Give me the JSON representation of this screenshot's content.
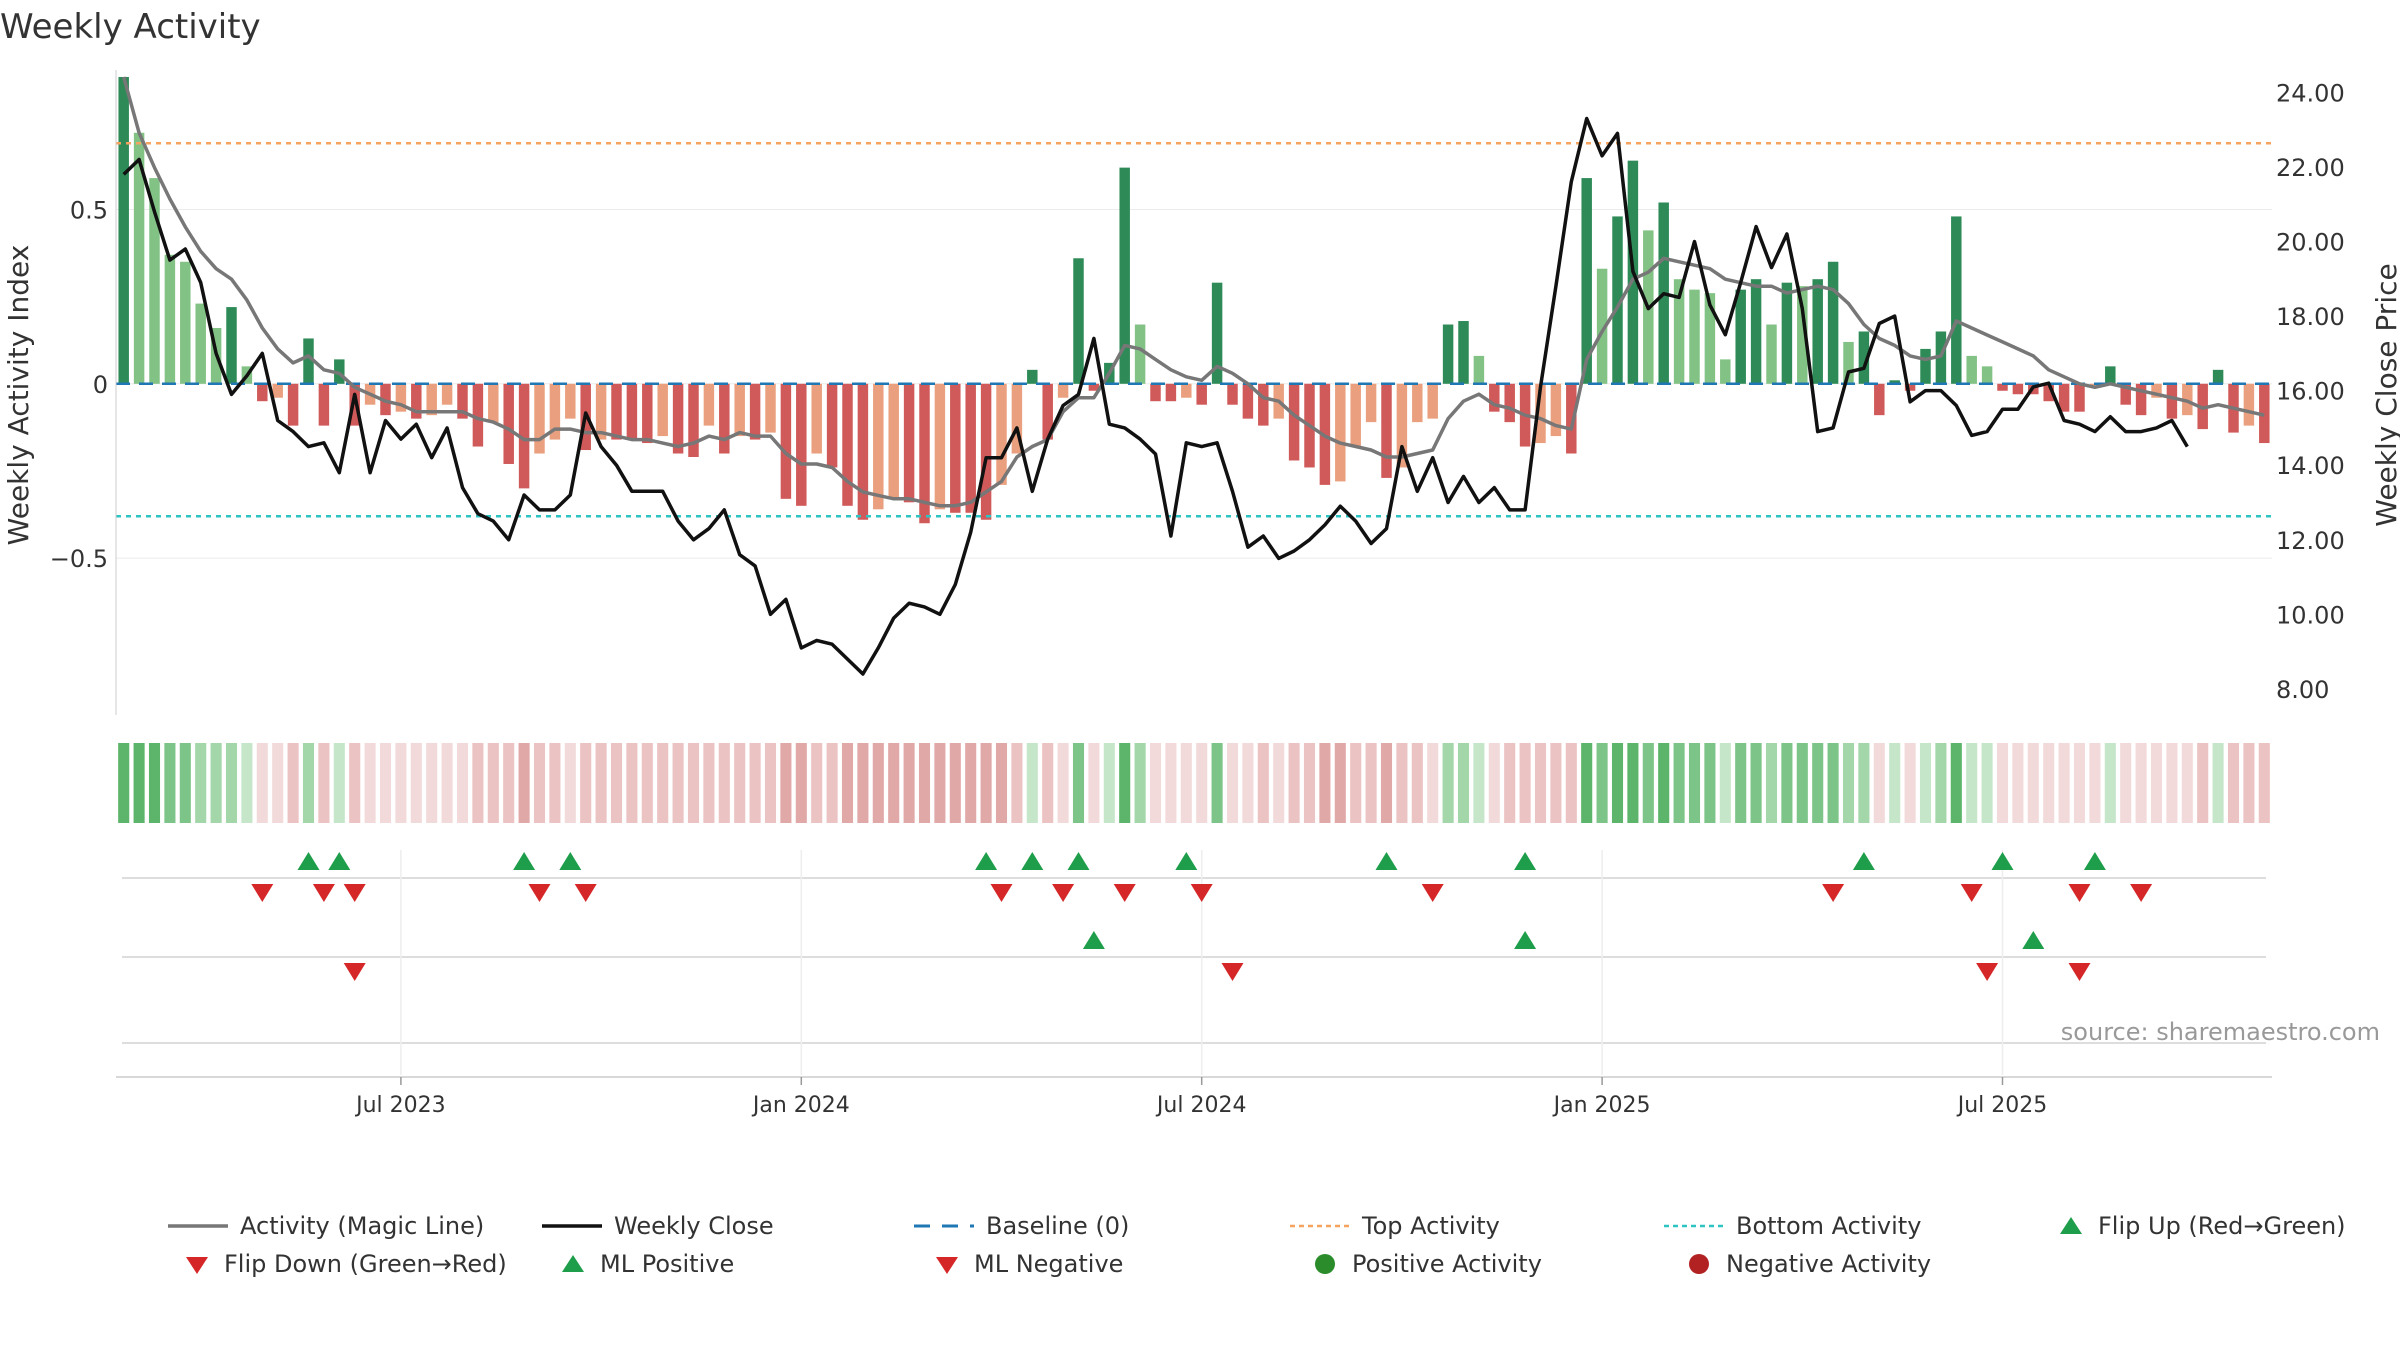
{
  "chart_data": {
    "type": "bar",
    "title": "Weekly Activity",
    "ylabel": "Weekly Activity Index",
    "y2label": "Weekly Close Price",
    "ylim": [
      -0.95,
      0.9
    ],
    "y2lim": [
      7.3,
      24.6
    ],
    "yticks": [
      {
        "value": 0.5,
        "label": "0.5"
      },
      {
        "value": 0,
        "label": "0"
      },
      {
        "value": -0.5,
        "label": "−0.5"
      }
    ],
    "y2ticks": [
      {
        "value": 24,
        "label": "24.00"
      },
      {
        "value": 22,
        "label": "22.00"
      },
      {
        "value": 20,
        "label": "20.00"
      },
      {
        "value": 18,
        "label": "18.00"
      },
      {
        "value": 16,
        "label": "16.00"
      },
      {
        "value": 14,
        "label": "14.00"
      },
      {
        "value": 12,
        "label": "12.00"
      },
      {
        "value": 10,
        "label": "10.00"
      },
      {
        "value": 8,
        "label": "8.00"
      }
    ],
    "xticks": [
      {
        "week": 18,
        "label": "Jul 2023"
      },
      {
        "week": 44,
        "label": "Jan 2024"
      },
      {
        "week": 70,
        "label": "Jul 2024"
      },
      {
        "week": 96,
        "label": "Jan 2025"
      },
      {
        "week": 122,
        "label": "Jul 2025"
      }
    ],
    "top_activity": 0.69,
    "bottom_activity": -0.38,
    "activity": [
      0.88,
      0.72,
      0.59,
      0.37,
      0.35,
      0.23,
      0.16,
      0.22,
      0.05,
      -0.05,
      -0.04,
      -0.12,
      0.13,
      -0.12,
      0.07,
      -0.12,
      -0.06,
      -0.09,
      -0.08,
      -0.1,
      -0.09,
      -0.06,
      -0.1,
      -0.18,
      -0.11,
      -0.23,
      -0.3,
      -0.2,
      -0.16,
      -0.1,
      -0.19,
      -0.16,
      -0.16,
      -0.16,
      -0.17,
      -0.15,
      -0.2,
      -0.21,
      -0.12,
      -0.2,
      -0.15,
      -0.16,
      -0.14,
      -0.33,
      -0.35,
      -0.2,
      -0.24,
      -0.35,
      -0.39,
      -0.36,
      -0.33,
      -0.34,
      -0.4,
      -0.36,
      -0.37,
      -0.37,
      -0.39,
      -0.29,
      -0.2,
      0.04,
      -0.16,
      -0.04,
      0.36,
      -0.02,
      0.06,
      0.62,
      0.17,
      -0.05,
      -0.05,
      -0.04,
      -0.06,
      0.29,
      -0.06,
      -0.1,
      -0.12,
      -0.1,
      -0.22,
      -0.24,
      -0.29,
      -0.28,
      -0.18,
      -0.11,
      -0.27,
      -0.24,
      -0.11,
      -0.1,
      0.17,
      0.18,
      0.08,
      -0.08,
      -0.11,
      -0.18,
      -0.17,
      -0.15,
      -0.2,
      0.59,
      0.33,
      0.48,
      0.64,
      0.44,
      0.52,
      0.3,
      0.27,
      0.26,
      0.07,
      0.27,
      0.3,
      0.17,
      0.29,
      0.28,
      0.3,
      0.35,
      0.12,
      0.15,
      -0.09,
      0.01,
      -0.02,
      0.1,
      0.15,
      0.48,
      0.08,
      0.05,
      -0.02,
      -0.03,
      -0.03,
      -0.05,
      -0.08,
      -0.08,
      -0.01,
      0.05,
      -0.06,
      -0.09,
      -0.04,
      -0.1,
      -0.09,
      -0.13,
      0.04,
      -0.14,
      -0.12,
      -0.17
    ],
    "magic_line": [
      0.88,
      0.72,
      0.62,
      0.53,
      0.45,
      0.38,
      0.33,
      0.3,
      0.24,
      0.16,
      0.1,
      0.06,
      0.08,
      0.04,
      0.03,
      -0.01,
      -0.03,
      -0.05,
      -0.06,
      -0.08,
      -0.08,
      -0.08,
      -0.08,
      -0.1,
      -0.11,
      -0.13,
      -0.16,
      -0.16,
      -0.13,
      -0.13,
      -0.14,
      -0.14,
      -0.15,
      -0.16,
      -0.16,
      -0.17,
      -0.18,
      -0.17,
      -0.15,
      -0.16,
      -0.14,
      -0.15,
      -0.15,
      -0.2,
      -0.23,
      -0.23,
      -0.24,
      -0.28,
      -0.31,
      -0.32,
      -0.33,
      -0.33,
      -0.34,
      -0.35,
      -0.35,
      -0.34,
      -0.31,
      -0.28,
      -0.21,
      -0.18,
      -0.16,
      -0.08,
      -0.04,
      -0.04,
      0.03,
      0.11,
      0.1,
      0.07,
      0.04,
      0.02,
      0.01,
      0.05,
      0.03,
      0.0,
      -0.04,
      -0.05,
      -0.09,
      -0.12,
      -0.15,
      -0.17,
      -0.18,
      -0.19,
      -0.21,
      -0.21,
      -0.2,
      -0.19,
      -0.1,
      -0.05,
      -0.03,
      -0.06,
      -0.07,
      -0.09,
      -0.1,
      -0.12,
      -0.13,
      0.07,
      0.15,
      0.22,
      0.3,
      0.32,
      0.36,
      0.35,
      0.34,
      0.33,
      0.3,
      0.29,
      0.28,
      0.28,
      0.26,
      0.27,
      0.28,
      0.27,
      0.23,
      0.17,
      0.13,
      0.11,
      0.08,
      0.07,
      0.08,
      0.18,
      0.16,
      0.14,
      0.12,
      0.1,
      0.08,
      0.04,
      0.02,
      0.0,
      -0.01,
      0.0,
      -0.01,
      -0.02,
      -0.03,
      -0.04,
      -0.05,
      -0.07,
      -0.06,
      -0.07,
      -0.08,
      -0.09
    ],
    "weekly_close": [
      21.8,
      22.2,
      20.8,
      19.5,
      19.8,
      18.9,
      17.0,
      15.9,
      16.4,
      17.0,
      15.2,
      14.9,
      14.5,
      14.6,
      13.8,
      15.9,
      13.8,
      15.2,
      14.7,
      15.1,
      14.2,
      15.0,
      13.4,
      12.7,
      12.5,
      12.0,
      13.2,
      12.8,
      12.8,
      13.2,
      15.4,
      14.5,
      14.0,
      13.3,
      13.3,
      13.3,
      12.5,
      12.0,
      12.3,
      12.8,
      11.6,
      11.3,
      10.0,
      10.4,
      9.1,
      9.3,
      9.2,
      8.8,
      8.4,
      9.1,
      9.9,
      10.3,
      10.2,
      10.0,
      10.8,
      12.2,
      14.2,
      14.2,
      15.0,
      13.3,
      14.7,
      15.6,
      15.9,
      17.4,
      15.1,
      15.0,
      14.7,
      14.3,
      12.1,
      14.6,
      14.5,
      14.6,
      13.3,
      11.8,
      12.1,
      11.5,
      11.7,
      12.0,
      12.4,
      12.9,
      12.5,
      11.9,
      12.3,
      14.5,
      13.3,
      14.2,
      13.0,
      13.7,
      13.0,
      13.4,
      12.8,
      12.8,
      16.1,
      18.8,
      21.6,
      23.3,
      22.3,
      22.9,
      19.2,
      18.2,
      18.6,
      18.5,
      20.0,
      18.3,
      17.5,
      18.9,
      20.4,
      19.3,
      20.2,
      18.2,
      14.9,
      15.0,
      16.5,
      16.6,
      17.8,
      18.0,
      15.7,
      16.0,
      16.0,
      15.6,
      14.8,
      14.9,
      15.5,
      15.5,
      16.1,
      16.2,
      15.2,
      15.1,
      14.9,
      15.3,
      14.9,
      14.9,
      15.0,
      15.2,
      14.5
    ],
    "heat_strip": {
      "green_shades": [
        "#5cb56a",
        "#7cc487",
        "#a3d6a9",
        "#c6e6ca"
      ],
      "red_shades": [
        "#d68b8b",
        "#e1a8a8",
        "#ebc3c3",
        "#f3dada"
      ]
    },
    "marker_rows": [
      {
        "name": "flip",
        "up": [
          12,
          14,
          26,
          29,
          56,
          59,
          62,
          69,
          82,
          91,
          113,
          122,
          128
        ],
        "down": [
          9,
          13,
          15,
          27,
          30,
          57,
          61,
          65,
          70,
          85,
          111,
          120,
          127,
          131
        ]
      },
      {
        "name": "ml",
        "up": [
          63,
          91,
          124
        ],
        "down": [
          15,
          72,
          121,
          127
        ]
      },
      {
        "name": "activity",
        "up": [],
        "down": []
      }
    ],
    "source": "source: sharemaestro.com",
    "colors": {
      "strong_green": "#2e8b57",
      "light_green": "#82c285",
      "strong_red": "#d05a5a",
      "light_red": "#eaa07f",
      "magic_line": "#777777",
      "close_line": "#111111",
      "baseline": "#1f77b4",
      "top_activity": "#f4a460",
      "bottom_activity": "#2ec4c4",
      "marker_up": "#1e9e4a",
      "marker_down": "#d62728",
      "positive_dot": "#2a8c2a",
      "negative_dot": "#b22222"
    },
    "legend": [
      {
        "key": "magic",
        "label": "Activity (Magic Line)"
      },
      {
        "key": "close",
        "label": "Weekly Close"
      },
      {
        "key": "baseline",
        "label": "Baseline (0)"
      },
      {
        "key": "top",
        "label": "Top Activity"
      },
      {
        "key": "bottom",
        "label": "Bottom Activity"
      },
      {
        "key": "flipup",
        "label": "Flip Up (Red→Green)"
      },
      {
        "key": "flipdown",
        "label": "Flip Down (Green→Red)"
      },
      {
        "key": "mlpos",
        "label": "ML Positive"
      },
      {
        "key": "mlneg",
        "label": "ML Negative"
      },
      {
        "key": "posact",
        "label": "Positive Activity"
      },
      {
        "key": "negact",
        "label": "Negative Activity"
      }
    ]
  }
}
